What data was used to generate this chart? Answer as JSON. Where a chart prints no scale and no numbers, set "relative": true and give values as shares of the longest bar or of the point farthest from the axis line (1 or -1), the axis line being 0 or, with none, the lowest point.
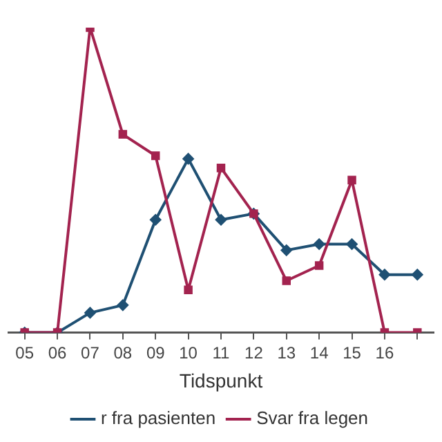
{
  "chart_data": {
    "type": "line",
    "xlabel": "Tidspunkt",
    "relative": true,
    "legend": "bottom",
    "grid": false,
    "categories": [
      "05",
      "06",
      "07",
      "08",
      "09",
      "10",
      "11",
      "12",
      "13",
      "14",
      "15",
      "16",
      null
    ],
    "series": [
      {
        "name": "r fra pasienten",
        "color": "#1f5073",
        "marker": "diamond",
        "values": [
          0,
          0,
          0.065,
          0.09,
          0.37,
          0.57,
          0.37,
          0.39,
          0.27,
          0.29,
          0.29,
          0.19,
          0.19
        ]
      },
      {
        "name": "Svar fra legen",
        "color": "#a3234f",
        "marker": "square",
        "values": [
          0,
          0,
          1,
          0.65,
          0.58,
          0.14,
          0.54,
          0.39,
          0.17,
          0.22,
          0.5,
          0,
          0
        ]
      }
    ]
  }
}
